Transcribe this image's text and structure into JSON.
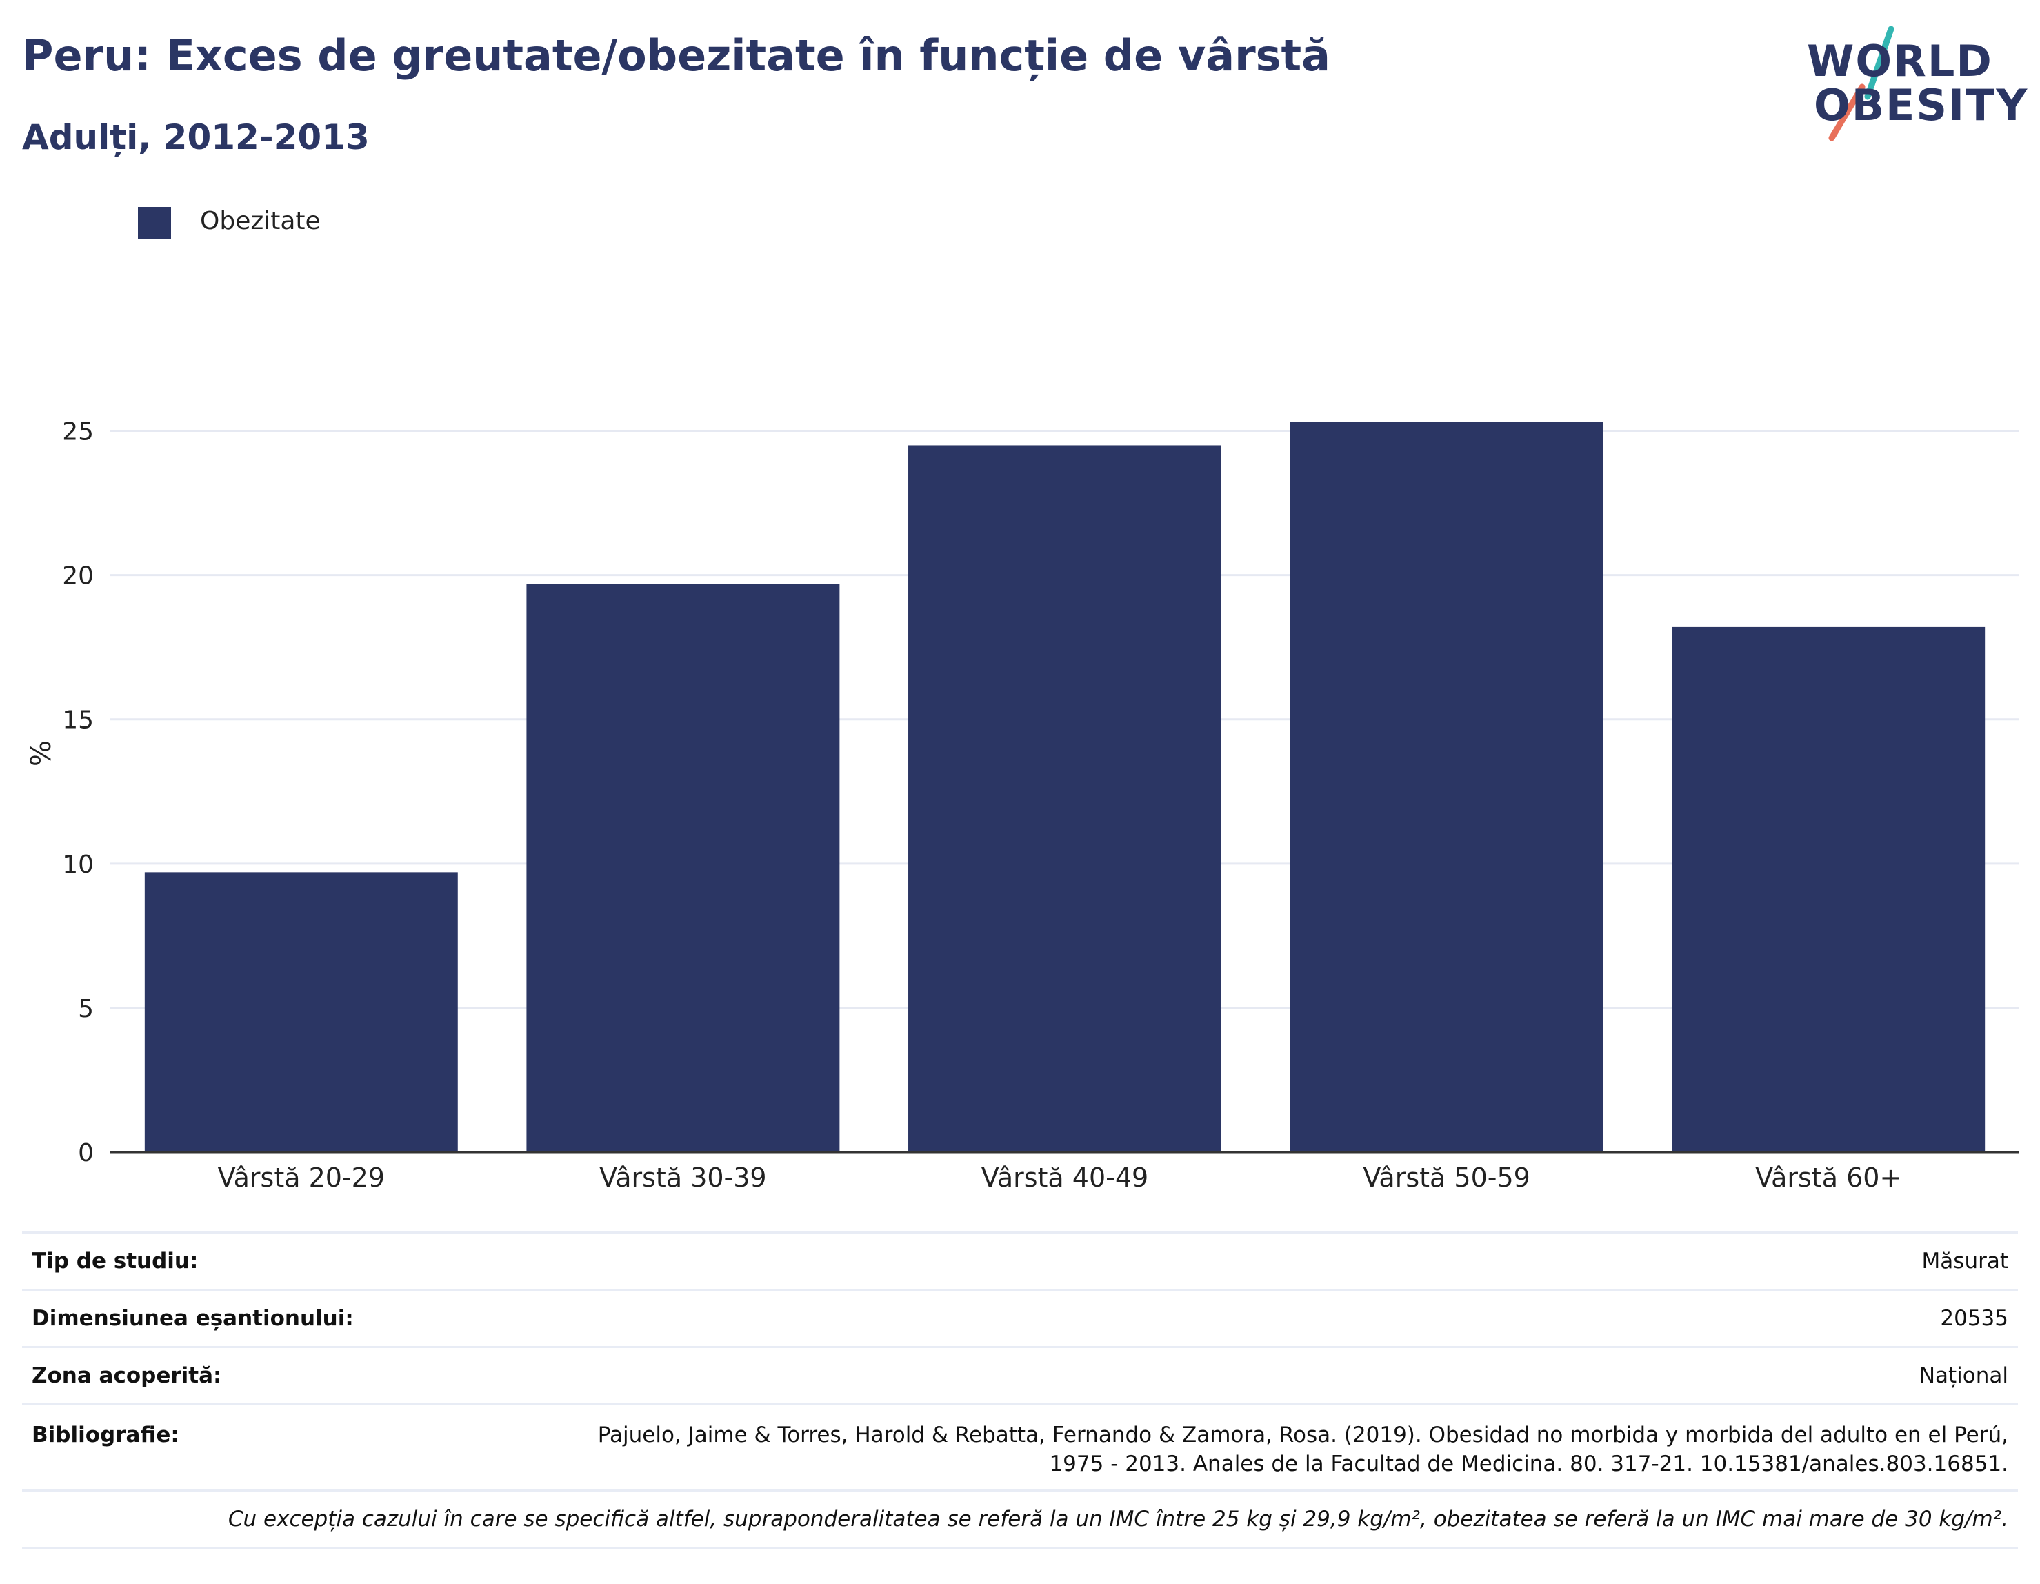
{
  "header": {
    "title": "Peru: Exces de greutate/obezitate în funcție de vârstă",
    "subtitle": "Adulți, 2012-2013"
  },
  "logo": {
    "line1": "WORLD",
    "line2": "OBESITY",
    "accent_teal": "#33b6b2",
    "accent_coral": "#e8705a"
  },
  "colors": {
    "bar": "#2b3664",
    "text": "#2b3664",
    "grid": "#e6e9f2",
    "axis": "#333333"
  },
  "legend": {
    "items": [
      {
        "label": "Obezitate",
        "color": "#2b3664"
      }
    ]
  },
  "chart_data": {
    "type": "bar",
    "categories": [
      "Vârstă 20-29",
      "Vârstă 30-39",
      "Vârstă 40-49",
      "Vârstă 50-59",
      "Vârstă 60+"
    ],
    "series": [
      {
        "name": "Obezitate",
        "values": [
          9.7,
          19.7,
          24.5,
          25.3,
          18.2
        ]
      }
    ],
    "ylabel": "%",
    "ylim": [
      0,
      27.5
    ],
    "yticks": [
      0,
      5,
      10,
      15,
      20,
      25
    ],
    "grid": true,
    "legend_position": "top-left"
  },
  "info": {
    "study_type_label": "Tip de studiu:",
    "study_type_value": "Măsurat",
    "sample_size_label": "Dimensiunea eșantionului:",
    "sample_size_value": "20535",
    "coverage_label": "Zona acoperită:",
    "coverage_value": "Național",
    "bibliography_label": "Bibliografie:",
    "bibliography_line1": "Pajuelo, Jaime & Torres, Harold & Rebatta, Fernando & Zamora, Rosa. (2019). Obesidad no morbida y morbida del adulto en el Perú,",
    "bibliography_line2": "1975 - 2013. Anales de la Facultad de Medicina. 80. 317-21. 10.15381/anales.803.16851.",
    "footnote": "Cu excepția cazului în care se specifică altfel, supraponderalitatea se referă la un IMC între 25 kg și 29,9 kg/m², obezitatea se referă la un IMC mai mare de 30 kg/m²."
  }
}
